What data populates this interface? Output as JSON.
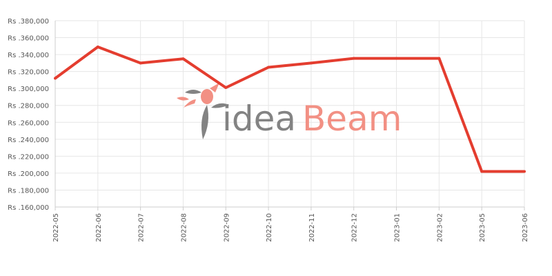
{
  "colors": {
    "series": "#e43d2f",
    "watermark_gray": "#7d7d7d",
    "watermark_accent": "#f28b7e"
  },
  "watermark": {
    "part1": "idea",
    "part2": "Beam"
  },
  "chart_data": {
    "type": "line",
    "title": "",
    "xlabel": "",
    "ylabel": "",
    "x": [
      "2022-05",
      "2022-06",
      "2022-07",
      "2022-08",
      "2022-09",
      "2022-10",
      "2022-11",
      "2022-12",
      "2023-01",
      "2023-02",
      "2023-05",
      "2023-06"
    ],
    "series": [
      {
        "values": [
          312000,
          349000,
          330000,
          335000,
          301000,
          325000,
          330000,
          335500,
          335500,
          335500,
          202000,
          202000
        ]
      }
    ],
    "ylim": [
      160000,
      380000
    ],
    "yticks": [
      160000,
      180000,
      200000,
      220000,
      240000,
      260000,
      280000,
      300000,
      320000,
      340000,
      360000,
      380000
    ],
    "ytick_labels": [
      "Rs .160,000",
      "Rs .180,000",
      "Rs .200,000",
      "Rs .220,000",
      "Rs .240,000",
      "Rs .260,000",
      "Rs .280,000",
      "Rs .300,000",
      "Rs .320,000",
      "Rs .340,000",
      "Rs .360,000",
      "Rs .380,000"
    ],
    "grid": true,
    "legend": "none"
  }
}
